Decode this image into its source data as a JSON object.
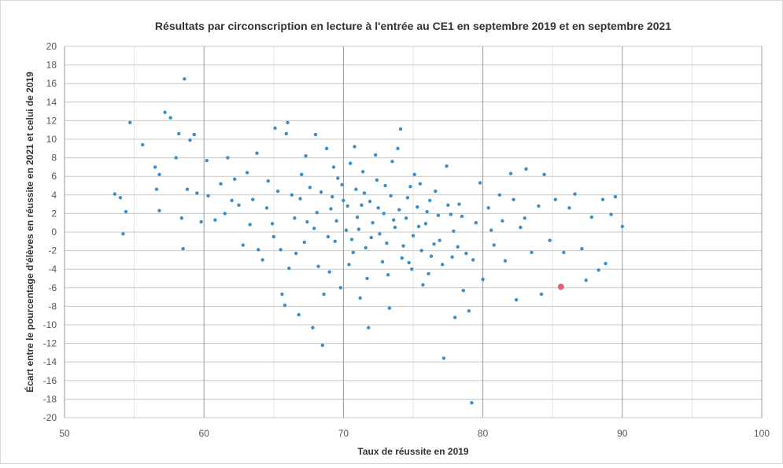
{
  "chart_data": {
    "type": "scatter",
    "title": "Résultats par circonscription en lecture à l'entrée au CE1 en septembre 2019 et en septembre 2021",
    "xlabel": "Taux de réussite en 2019",
    "ylabel": "Écart entre le pourcentage d'élèves en réussite en 2021 et celui de 2019",
    "xlim": [
      50,
      100
    ],
    "ylim": [
      -20,
      20
    ],
    "xticks": [
      50,
      60,
      70,
      80,
      90,
      100
    ],
    "xminorticks": [
      55,
      65,
      75,
      85,
      95
    ],
    "yticks": [
      -20,
      -18,
      -16,
      -14,
      -12,
      -10,
      -8,
      -6,
      -4,
      -2,
      0,
      2,
      4,
      6,
      8,
      10,
      12,
      14,
      16,
      18,
      20
    ],
    "grid": true,
    "series": [
      {
        "color": "#3a8fc8",
        "x": [
          53.6,
          54.0,
          54.2,
          54.4,
          54.7,
          55.6,
          56.5,
          56.6,
          56.8,
          56.8,
          57.2,
          57.6,
          58.0,
          58.2,
          58.4,
          58.5,
          58.6,
          58.8,
          59.0,
          59.3,
          59.5,
          59.8,
          60.2,
          60.3,
          60.8,
          61.5,
          61.7,
          62.2,
          62.5,
          62.8,
          63.1,
          63.5,
          63.8,
          64.2,
          64.6,
          64.9,
          65.1,
          65.5,
          65.6,
          65.8,
          65.9,
          66.0,
          66.3,
          66.6,
          66.8,
          67.0,
          67.4,
          67.8,
          68.0,
          68.2,
          68.5,
          68.6,
          68.8,
          69.1,
          69.4,
          69.6,
          69.8,
          70.0,
          70.2,
          70.5,
          70.7,
          71.0,
          71.2,
          71.5,
          71.8,
          72.0,
          72.3,
          72.5,
          72.8,
          73.0,
          73.3,
          73.6,
          73.9,
          74.1,
          74.3,
          74.6,
          74.9,
          75.1,
          75.4,
          75.7,
          76.0,
          76.3,
          76.6,
          76.9,
          77.2,
          77.4,
          77.7,
          78.0,
          78.3,
          78.6,
          78.8,
          79.0,
          79.2,
          79.5,
          79.8,
          80.0,
          80.4,
          80.8,
          81.2,
          81.6,
          82.0,
          82.4,
          82.7,
          83.1,
          83.5,
          84.0,
          84.2,
          84.4,
          84.8,
          85.2,
          85.8,
          86.2,
          86.6,
          87.1,
          87.4,
          87.8,
          88.3,
          88.6,
          88.8,
          89.2,
          89.5,
          90.0,
          68.1,
          68.4,
          68.9,
          69.2,
          69.5,
          69.9,
          70.3,
          70.6,
          70.9,
          71.1,
          71.3,
          71.6,
          71.9,
          72.1,
          72.4,
          72.6,
          72.9,
          73.1,
          73.4,
          73.7,
          74.0,
          74.2,
          74.5,
          74.8,
          75.0,
          75.3,
          75.6,
          75.9,
          76.2,
          76.5,
          76.8,
          77.1,
          77.5,
          77.9,
          78.2,
          78.5,
          66.5,
          66.9,
          67.2,
          67.6,
          67.9,
          64.5,
          65.3,
          65.0,
          63.3,
          62.0,
          61.2,
          63.9,
          66.1,
          69.0,
          70.4,
          71.7,
          73.2,
          74.7,
          76.1,
          77.8,
          79.3,
          80.6,
          81.4,
          82.2,
          83.0,
          69.3,
          71.4,
          73.5,
          75.5,
          67.3,
          70.8
        ],
        "values": [
          4.1,
          3.7,
          -0.2,
          2.2,
          11.8,
          9.4,
          7.0,
          4.6,
          2.3,
          6.2,
          12.9,
          12.3,
          8.0,
          10.6,
          1.5,
          -1.8,
          16.5,
          4.6,
          9.9,
          10.5,
          4.2,
          1.1,
          7.7,
          3.9,
          1.3,
          2.0,
          8.0,
          5.7,
          2.9,
          -1.4,
          6.4,
          3.5,
          8.5,
          -3.0,
          5.5,
          0.9,
          11.2,
          -1.9,
          -6.7,
          -7.9,
          10.6,
          11.8,
          4.0,
          -2.3,
          -8.9,
          6.2,
          1.1,
          -10.3,
          10.5,
          -3.7,
          -12.2,
          -6.7,
          9.0,
          2.5,
          -1.0,
          5.8,
          -6.0,
          3.4,
          0.2,
          7.4,
          -2.2,
          1.6,
          -7.1,
          4.2,
          -10.3,
          -0.6,
          8.3,
          2.6,
          -3.2,
          5.0,
          -8.2,
          1.3,
          9.0,
          11.1,
          -1.5,
          3.7,
          -4.0,
          6.2,
          0.6,
          -5.7,
          2.2,
          -2.6,
          4.4,
          -0.9,
          -13.6,
          7.1,
          1.9,
          -9.2,
          3.0,
          -6.3,
          -2.3,
          -8.5,
          -18.4,
          1.0,
          5.3,
          -5.1,
          2.6,
          -1.4,
          4.0,
          -3.1,
          6.3,
          -7.3,
          0.5,
          6.8,
          -2.2,
          2.8,
          -6.7,
          6.2,
          -0.9,
          3.5,
          -2.2,
          2.6,
          4.1,
          -1.8,
          -5.2,
          1.6,
          -4.1,
          3.5,
          -3.4,
          1.9,
          3.8,
          0.6,
          2.1,
          4.3,
          -0.5,
          3.8,
          1.2,
          5.1,
          2.8,
          -0.8,
          4.6,
          0.3,
          2.9,
          -1.7,
          3.3,
          1.0,
          5.6,
          -0.2,
          2.0,
          -1.2,
          3.9,
          0.5,
          2.4,
          -2.8,
          1.5,
          4.9,
          -0.4,
          2.7,
          -2.0,
          0.9,
          3.4,
          -1.3,
          1.8,
          -3.5,
          2.9,
          0.1,
          -1.6,
          1.7,
          1.5,
          3.6,
          -1.1,
          4.8,
          0.4,
          2.6,
          4.4,
          -0.5,
          0.8,
          3.4,
          5.2,
          -1.9,
          -3.9,
          -4.3,
          -3.5,
          -5.0,
          -4.6,
          -3.3,
          -4.5,
          -2.7,
          -3.0,
          0.2,
          1.2,
          3.5,
          1.5,
          7.0,
          6.5,
          7.6,
          5.2,
          8.2,
          9.2
        ]
      },
      {
        "color": "#e0607e",
        "x": [
          85.6
        ],
        "values": [
          -5.9
        ]
      }
    ]
  }
}
